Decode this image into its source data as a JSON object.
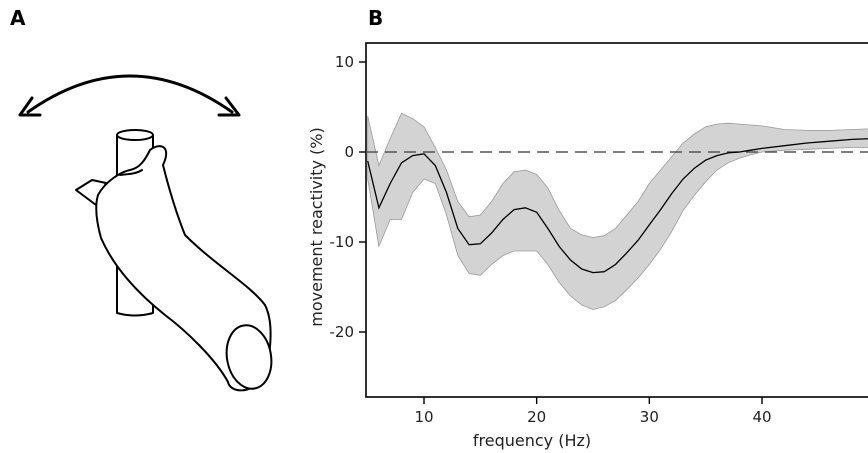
{
  "panels": {
    "a_label": "A",
    "b_label": "B"
  },
  "colors": {
    "band": "#d3d3d3",
    "line": "#000000",
    "zero": "#555555"
  },
  "chart_data": {
    "type": "line",
    "title": "",
    "xlabel": "frequency (Hz)",
    "ylabel": "movement reactivity (%)",
    "xlim": [
      5,
      50
    ],
    "ylim": [
      -30,
      13
    ],
    "xticks": [
      10,
      20,
      30,
      40
    ],
    "yticks": [
      10,
      0,
      -10,
      -20
    ],
    "zero_line": true,
    "grid": false,
    "series": [
      {
        "x": [
          5,
          6,
          7,
          8,
          9,
          10,
          11,
          12,
          13,
          14,
          15,
          16,
          17,
          18,
          19,
          20,
          21,
          22,
          23,
          24,
          25,
          26,
          27,
          28,
          29,
          30,
          31,
          32,
          33,
          34,
          35,
          36,
          37,
          38,
          39,
          40,
          42,
          44,
          46,
          48,
          50
        ],
        "y": [
          -1,
          -6.2,
          -3.5,
          -1.2,
          -0.4,
          -0.2,
          -1.5,
          -4.5,
          -8.5,
          -10.3,
          -10.2,
          -9,
          -7.5,
          -6.4,
          -6.2,
          -6.7,
          -8.5,
          -10.5,
          -12,
          -13,
          -13.4,
          -13.3,
          -12.5,
          -11.2,
          -9.8,
          -8.1,
          -6.4,
          -4.6,
          -3,
          -1.8,
          -0.9,
          -0.4,
          -0.1,
          0,
          0.2,
          0.4,
          0.7,
          1,
          1.2,
          1.4,
          1.5
        ],
        "upper": [
          4,
          -1.5,
          1.5,
          4.3,
          3.7,
          2.8,
          0.5,
          -2,
          -5.5,
          -7.2,
          -7,
          -5.5,
          -3.5,
          -2.2,
          -2,
          -2.5,
          -4,
          -6.5,
          -8.5,
          -9.2,
          -9.5,
          -9.3,
          -8.5,
          -7,
          -5.5,
          -3.5,
          -2,
          -0.5,
          1,
          2,
          2.8,
          3.1,
          3.2,
          3.1,
          3,
          2.9,
          2.5,
          2.4,
          2.4,
          2.5,
          2.6
        ],
        "lower": [
          -3,
          -10.5,
          -7.5,
          -7.5,
          -4.5,
          -3,
          -3.5,
          -7,
          -11.5,
          -13.5,
          -13.7,
          -12.5,
          -11.5,
          -11,
          -11,
          -11,
          -12.5,
          -14.5,
          -16,
          -17,
          -17.5,
          -17.2,
          -16.5,
          -15.3,
          -14,
          -12.5,
          -10.8,
          -8.8,
          -6.5,
          -4.8,
          -3.3,
          -2,
          -1.2,
          -0.7,
          -0.3,
          0,
          0.2,
          0.3,
          0.4,
          0.5,
          0.5
        ]
      }
    ]
  }
}
